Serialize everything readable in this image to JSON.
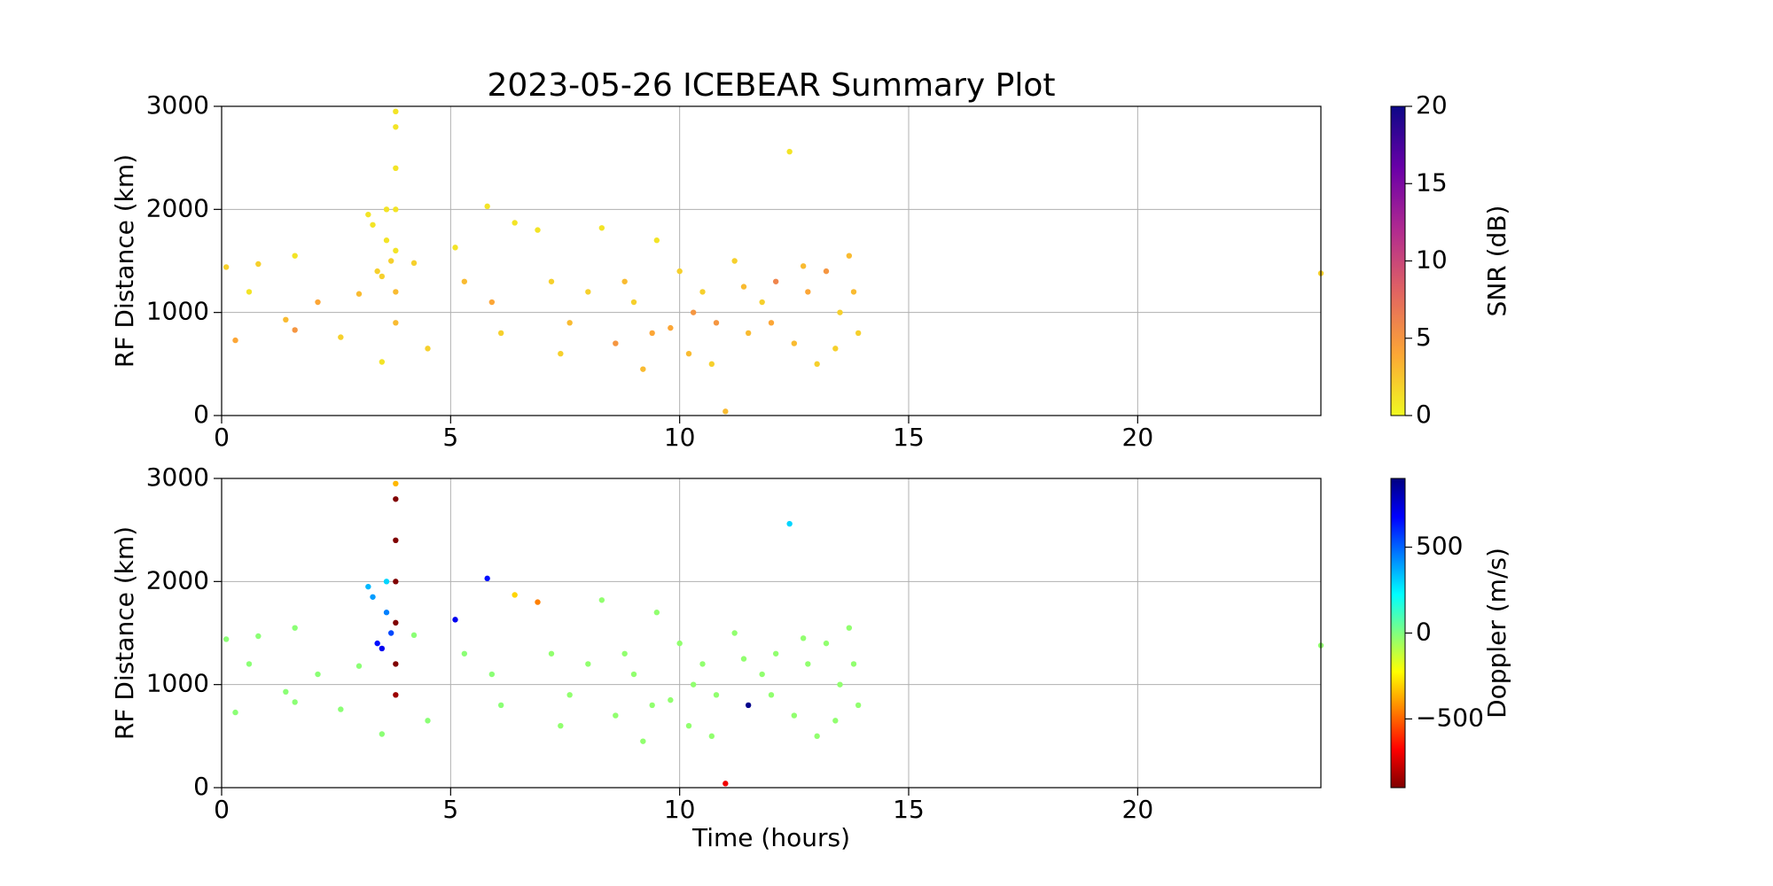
{
  "chart_data": [
    {
      "type": "scatter",
      "title": "2023-05-26 ICEBEAR Summary Plot",
      "ylabel": "RF Distance (km)",
      "xlim": [
        0,
        24
      ],
      "xticks": [
        0,
        5,
        10,
        15,
        20
      ],
      "ylim": [
        0,
        3000
      ],
      "yticks": [
        0,
        1000,
        2000,
        3000
      ],
      "grid": true,
      "x": [
        0.1,
        0.3,
        0.6,
        0.8,
        1.4,
        1.6,
        1.6,
        2.1,
        2.6,
        3.0,
        3.2,
        3.3,
        3.4,
        3.5,
        3.5,
        3.6,
        3.6,
        3.7,
        3.8,
        3.8,
        3.8,
        3.8,
        3.8,
        3.8,
        3.8,
        4.2,
        4.5,
        5.1,
        5.3,
        5.8,
        5.9,
        6.1,
        6.4,
        6.9,
        7.2,
        7.6,
        8.0,
        8.3,
        8.6,
        9.0,
        9.2,
        9.5,
        9.8,
        10.0,
        10.2,
        10.5,
        10.8,
        11.0,
        11.2,
        11.5,
        11.8,
        12.1,
        12.4,
        12.5,
        12.8,
        13.0,
        13.2,
        13.5,
        13.7,
        13.9,
        24.0,
        7.4,
        8.8,
        9.4,
        10.3,
        10.7,
        11.4,
        12.0,
        12.7,
        13.4,
        13.8
      ],
      "y": [
        1440,
        730,
        1200,
        1470,
        930,
        830,
        1550,
        1100,
        760,
        1180,
        1950,
        1850,
        1400,
        1350,
        520,
        1700,
        2000,
        1500,
        1200,
        1600,
        2000,
        2400,
        2800,
        2950,
        900,
        1480,
        650,
        1630,
        1300,
        2030,
        1100,
        800,
        1870,
        1800,
        1300,
        900,
        1200,
        1820,
        700,
        1100,
        450,
        1700,
        850,
        1400,
        600,
        1200,
        900,
        40,
        1500,
        800,
        1100,
        1300,
        2560,
        700,
        1200,
        500,
        1400,
        1000,
        1550,
        800,
        1380,
        600,
        1300,
        800,
        1000,
        500,
        1250,
        900,
        1450,
        650,
        1200
      ],
      "c": [
        2,
        4,
        1,
        2,
        3,
        5,
        1,
        4,
        2,
        3,
        1,
        1,
        2,
        2,
        1,
        1,
        1,
        2,
        3,
        1,
        1,
        1,
        1,
        1,
        3,
        2,
        2,
        1,
        3,
        1,
        4,
        2,
        1,
        1,
        2,
        3,
        2,
        1,
        5,
        2,
        3,
        1,
        4,
        2,
        3,
        2,
        5,
        3,
        2,
        3,
        2,
        6,
        1,
        3,
        4,
        2,
        5,
        2,
        3,
        2,
        2,
        2,
        3,
        4,
        5,
        2,
        3,
        4,
        3,
        2,
        3
      ],
      "colorbar": {
        "label": "SNR (dB)",
        "lim": [
          0,
          20
        ],
        "ticks": [
          0,
          5,
          10,
          15,
          20
        ],
        "colormap": [
          "#f0f921",
          "#fca636",
          "#e16462",
          "#b12a90",
          "#6a00a8",
          "#0d0887"
        ]
      }
    },
    {
      "type": "scatter",
      "ylabel": "RF Distance (km)",
      "xlabel": "Time (hours)",
      "xlim": [
        0,
        24
      ],
      "xticks": [
        0,
        5,
        10,
        15,
        20
      ],
      "ylim": [
        0,
        3000
      ],
      "yticks": [
        0,
        1000,
        2000,
        3000
      ],
      "grid": true,
      "x": [
        0.1,
        0.3,
        0.6,
        0.8,
        1.4,
        1.6,
        1.6,
        2.1,
        2.6,
        3.0,
        3.2,
        3.3,
        3.4,
        3.5,
        3.5,
        3.6,
        3.6,
        3.7,
        3.8,
        3.8,
        3.8,
        3.8,
        3.8,
        3.8,
        3.8,
        4.2,
        4.5,
        5.1,
        5.3,
        5.8,
        5.9,
        6.1,
        6.4,
        6.9,
        7.2,
        7.6,
        8.0,
        8.3,
        8.6,
        9.0,
        9.2,
        9.5,
        9.8,
        10.0,
        10.2,
        10.5,
        10.8,
        11.0,
        11.2,
        11.5,
        11.8,
        12.1,
        12.4,
        12.5,
        12.8,
        13.0,
        13.2,
        13.5,
        13.7,
        13.9,
        24.0,
        7.4,
        8.8,
        9.4,
        10.3,
        10.7,
        11.4,
        12.0,
        12.7,
        13.4,
        13.8
      ],
      "y": [
        1440,
        730,
        1200,
        1470,
        930,
        830,
        1550,
        1100,
        760,
        1180,
        1950,
        1850,
        1400,
        1350,
        520,
        1700,
        2000,
        1500,
        1200,
        1600,
        2000,
        2400,
        2800,
        2950,
        900,
        1480,
        650,
        1630,
        1300,
        2030,
        1100,
        800,
        1870,
        1800,
        1300,
        900,
        1200,
        1820,
        700,
        1100,
        450,
        1700,
        850,
        1400,
        600,
        1200,
        900,
        40,
        1500,
        800,
        1100,
        1300,
        2560,
        700,
        1200,
        500,
        1400,
        1000,
        1550,
        800,
        1380,
        600,
        1300,
        800,
        1000,
        500,
        1250,
        900,
        1450,
        650,
        1200
      ],
      "c": [
        -20,
        -20,
        -20,
        -20,
        -20,
        -20,
        -20,
        -20,
        -20,
        -20,
        350,
        400,
        650,
        700,
        -20,
        450,
        300,
        550,
        -900,
        -900,
        -900,
        -900,
        -900,
        -350,
        -850,
        -20,
        -20,
        700,
        -20,
        650,
        -20,
        -20,
        -300,
        -450,
        -30,
        -30,
        -30,
        -30,
        -30,
        -30,
        -30,
        -30,
        -30,
        -30,
        -30,
        -30,
        -30,
        -700,
        -30,
        880,
        -30,
        -30,
        300,
        -30,
        -30,
        -30,
        -30,
        -30,
        -30,
        -30,
        -30,
        -30,
        -30,
        -30,
        -30,
        -30,
        -30,
        -30,
        -30,
        -30,
        -30
      ],
      "colorbar": {
        "label": "Doppler (m/s)",
        "lim": [
          -900,
          900
        ],
        "ticks": [
          {
            "value": -500,
            "label": "−500"
          },
          0,
          500
        ],
        "colormap": [
          "#800000",
          "#ff0000",
          "#ff8000",
          "#ffff00",
          "#80ff80",
          "#00ffff",
          "#0080ff",
          "#0000ff",
          "#000080"
        ]
      }
    }
  ]
}
